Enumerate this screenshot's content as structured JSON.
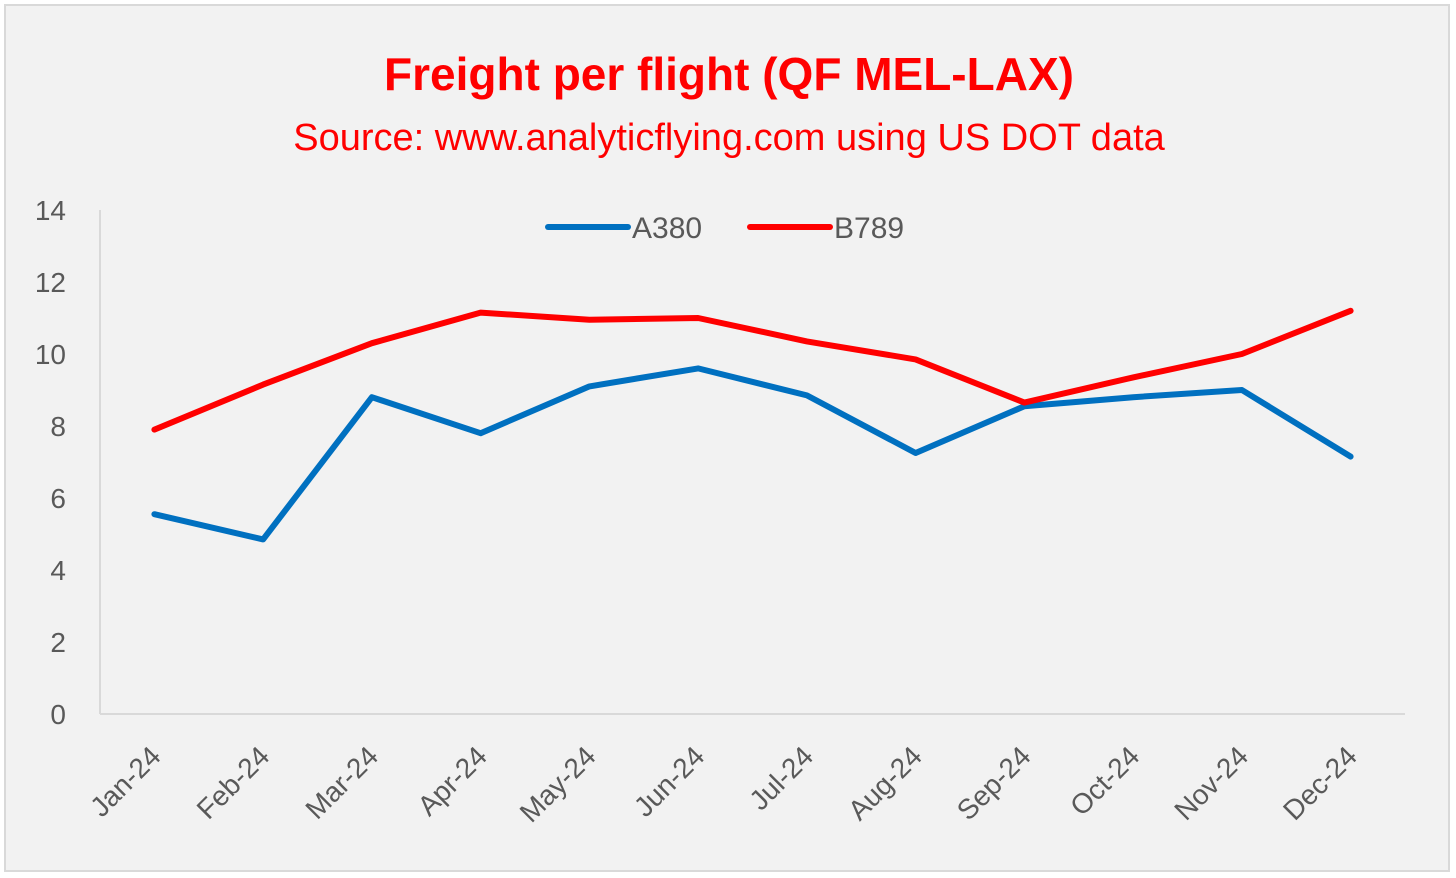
{
  "chart_data": {
    "type": "line",
    "title": "Freight per flight (QF MEL-LAX)",
    "subtitle": "Source: www.analyticflying.com using US DOT data",
    "categories": [
      "Jan-24",
      "Feb-24",
      "Mar-24",
      "Apr-24",
      "May-24",
      "Jun-24",
      "Jul-24",
      "Aug-24",
      "Sep-24",
      "Oct-24",
      "Nov-24",
      "Dec-24"
    ],
    "series": [
      {
        "name": "A380",
        "color": "#0070c0",
        "values": [
          5.55,
          4.85,
          8.8,
          7.8,
          9.1,
          9.6,
          8.85,
          7.25,
          8.55,
          8.8,
          9.0,
          7.15
        ]
      },
      {
        "name": "B789",
        "color": "#ff0000",
        "values": [
          7.9,
          9.15,
          10.3,
          11.15,
          10.95,
          11.0,
          10.35,
          9.85,
          8.65,
          9.35,
          10.0,
          11.2
        ]
      }
    ],
    "ylim": [
      0,
      14
    ],
    "yticks": [
      0,
      2,
      4,
      6,
      8,
      10,
      12,
      14
    ],
    "xlabel": "",
    "ylabel": "",
    "grid": false,
    "legend_position": "top-center"
  }
}
